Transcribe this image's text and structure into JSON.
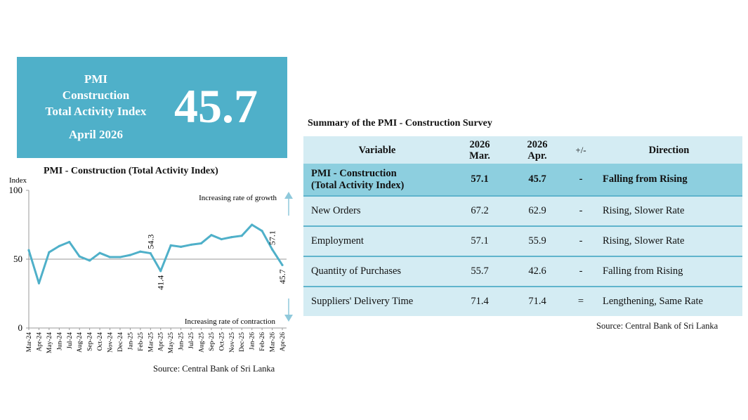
{
  "banner": {
    "line1": "PMI",
    "line2": "Construction",
    "line3": "Total Activity Index",
    "month": "April 2026",
    "value": "45.7",
    "color": "#4fb0c9"
  },
  "chart_data": {
    "type": "line",
    "title": "PMI - Construction (Total Activity Index)",
    "ylabel": "Index",
    "ylim": [
      0,
      100
    ],
    "yticks": [
      0,
      50,
      100
    ],
    "reference_line": 50,
    "categories": [
      "Mar-24",
      "Apr-24",
      "May-24",
      "Jun-24",
      "Jul-24",
      "Aug-24",
      "Sep-24",
      "Oct-24",
      "Nov-24",
      "Dec-24",
      "Jan-25",
      "Feb-25",
      "Mar-25",
      "Apr-25",
      "May-25",
      "Jun-25",
      "Jul-25",
      "Aug-25",
      "Sep-25",
      "Oct-25",
      "Nov-25",
      "Dec-25",
      "Jan-26",
      "Feb-26",
      "Mar-26",
      "Apr-26"
    ],
    "series": [
      {
        "values": [
          56.5,
          32.5,
          55,
          59.5,
          62.5,
          52,
          49,
          54.5,
          51.5,
          51.5,
          53,
          55.5,
          54.3,
          41.4,
          60,
          59,
          60.5,
          61.5,
          67.5,
          64.5,
          66,
          67,
          75,
          70.5,
          57.1,
          45.7
        ],
        "color": "#4fb0c9"
      }
    ],
    "data_labels": [
      {
        "index": 12,
        "text": "54.3"
      },
      {
        "index": 13,
        "text": "41.4"
      },
      {
        "index": 24,
        "text": "57.1"
      },
      {
        "index": 25,
        "text": "45.7"
      }
    ],
    "annotations": {
      "top": "Increasing rate of growth",
      "bottom": "Increasing rate of contraction"
    },
    "grid": false,
    "source": "Source: Central Bank of Sri Lanka"
  },
  "table": {
    "title": "Summary of the PMI - Construction Survey",
    "headers": {
      "variable": "Variable",
      "mar_year": "2026",
      "mar_month": "Mar.",
      "apr_year": "2026",
      "apr_month": "Apr.",
      "change": "+/-",
      "direction": "Direction"
    },
    "highlight": {
      "line1": "PMI - Construction",
      "line2": "(Total Activity Index)",
      "mar": "57.1",
      "apr": "45.7",
      "change": "-",
      "direction": "Falling from Rising"
    },
    "rows": [
      {
        "variable": "New Orders",
        "mar": "67.2",
        "apr": "62.9",
        "change": "-",
        "direction": "Rising, Slower Rate"
      },
      {
        "variable": "Employment",
        "mar": "57.1",
        "apr": "55.9",
        "change": "-",
        "direction": "Rising, Slower Rate"
      },
      {
        "variable": "Quantity of Purchases",
        "mar": "55.7",
        "apr": "42.6",
        "change": "-",
        "direction": "Falling from Rising"
      },
      {
        "variable": "Suppliers' Delivery Time",
        "mar": "71.4",
        "apr": "71.4",
        "change": "=",
        "direction": "Lengthening, Same Rate"
      }
    ],
    "source": "Source: Central Bank of Sri Lanka",
    "header_color": "#d4ecf3",
    "highlight_color": "#8dcfdf"
  }
}
